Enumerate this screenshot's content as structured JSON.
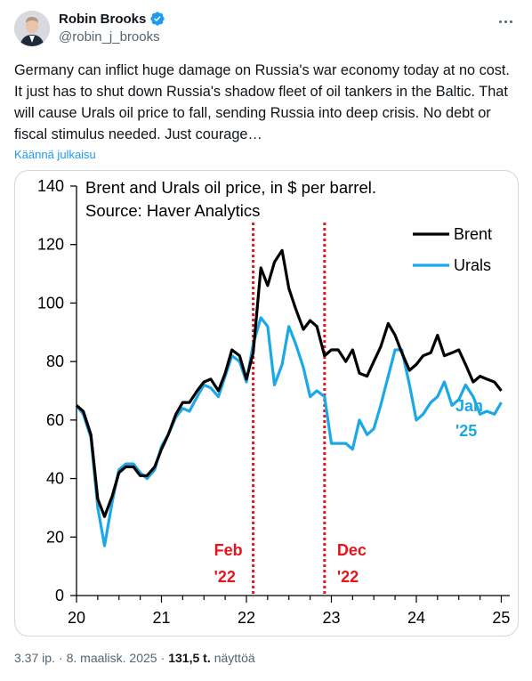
{
  "author": {
    "name": "Robin Brooks",
    "handle": "@robin_j_brooks"
  },
  "post": {
    "text": "Germany can inflict huge damage on Russia's war economy today at no cost. It just has to shut down Russia's shadow fleet of oil tankers in the Baltic. That will cause Urals oil price to fall, sending Russia into deep crisis. No debt or fiscal stimulus needed. Just courage…",
    "translate_label": "Käännä julkaisu",
    "time": "3.37 ip.",
    "date": "8. maalisk. 2025",
    "views_count": "131,5 t.",
    "views_label": "näyttöä"
  },
  "colors": {
    "verified": "#1d9bf0",
    "link": "#1d9bf0",
    "brent": "#000000",
    "urals": "#1aa9e6",
    "annotation": "#e8141b"
  },
  "icons": {
    "verified": "verified-badge-icon",
    "more": "more-options-icon"
  },
  "chart_data": {
    "type": "line",
    "title": "Brent and Urals oil price, in $ per barrel.",
    "subtitle": "Source: Haver Analytics",
    "xlim": [
      20,
      25.1
    ],
    "ylim": [
      0,
      140
    ],
    "xticks": [
      "20",
      "21",
      "22",
      "23",
      "24",
      "25"
    ],
    "yticks": [
      "0",
      "20",
      "40",
      "60",
      "80",
      "100",
      "120",
      "140"
    ],
    "legend_placement": "right",
    "series": [
      {
        "name": "Brent",
        "x": [
          20.0,
          20.08,
          20.17,
          20.25,
          20.33,
          20.42,
          20.5,
          20.58,
          20.67,
          20.75,
          20.83,
          20.92,
          21.0,
          21.08,
          21.17,
          21.25,
          21.33,
          21.42,
          21.5,
          21.58,
          21.67,
          21.75,
          21.83,
          21.92,
          22.0,
          22.08,
          22.17,
          22.25,
          22.33,
          22.42,
          22.5,
          22.58,
          22.67,
          22.75,
          22.83,
          22.92,
          23.0,
          23.08,
          23.17,
          23.25,
          23.33,
          23.42,
          23.5,
          23.58,
          23.67,
          23.75,
          23.83,
          23.92,
          24.0,
          24.08,
          24.17,
          24.25,
          24.33,
          24.42,
          24.5,
          24.58,
          24.67,
          24.75,
          24.83,
          24.92,
          25.0
        ],
        "values": [
          65,
          63,
          55,
          33,
          27,
          34,
          42,
          44,
          44,
          41,
          41,
          44,
          50,
          55,
          62,
          66,
          66,
          70,
          73,
          74,
          70,
          76,
          84,
          82,
          74,
          83,
          112,
          106,
          114,
          118,
          105,
          98,
          91,
          94,
          92,
          82,
          84,
          84,
          80,
          84,
          76,
          75,
          80,
          85,
          93,
          89,
          83,
          77,
          79,
          82,
          83,
          89,
          82,
          83,
          84,
          79,
          73,
          75,
          74,
          73,
          70
        ]
      },
      {
        "name": "Urals",
        "x": [
          20.0,
          20.08,
          20.17,
          20.25,
          20.33,
          20.42,
          20.5,
          20.58,
          20.67,
          20.75,
          20.83,
          20.92,
          21.0,
          21.08,
          21.17,
          21.25,
          21.33,
          21.42,
          21.5,
          21.58,
          21.67,
          21.75,
          21.83,
          21.92,
          22.0,
          22.08,
          22.17,
          22.25,
          22.33,
          22.42,
          22.5,
          22.58,
          22.67,
          22.75,
          22.83,
          22.92,
          23.0,
          23.08,
          23.17,
          23.25,
          23.33,
          23.42,
          23.5,
          23.58,
          23.67,
          23.75,
          23.83,
          23.92,
          24.0,
          24.08,
          24.17,
          24.25,
          24.33,
          24.42,
          24.5,
          24.58,
          24.67,
          24.75,
          24.83,
          24.92,
          25.0
        ],
        "values": [
          65,
          62,
          54,
          30,
          17,
          32,
          43,
          45,
          45,
          42,
          40,
          43,
          51,
          55,
          61,
          64,
          63,
          68,
          72,
          71,
          68,
          75,
          82,
          80,
          73,
          86,
          95,
          92,
          72,
          79,
          92,
          86,
          78,
          68,
          70,
          68,
          52,
          52,
          52,
          50,
          60,
          55,
          57,
          65,
          75,
          84,
          84,
          72,
          60,
          62,
          66,
          68,
          73,
          65,
          67,
          72,
          68,
          62,
          63,
          62,
          66
        ]
      }
    ],
    "annotations": [
      {
        "label": "Feb '22",
        "line1": "Feb",
        "line2": "'22",
        "x": 22.08
      },
      {
        "label": "Dec '22",
        "line1": "Dec",
        "line2": "'22",
        "x": 22.92
      },
      {
        "label": "Jan '25",
        "line1": "Jan",
        "line2": "'25",
        "x": 25.08
      }
    ]
  }
}
